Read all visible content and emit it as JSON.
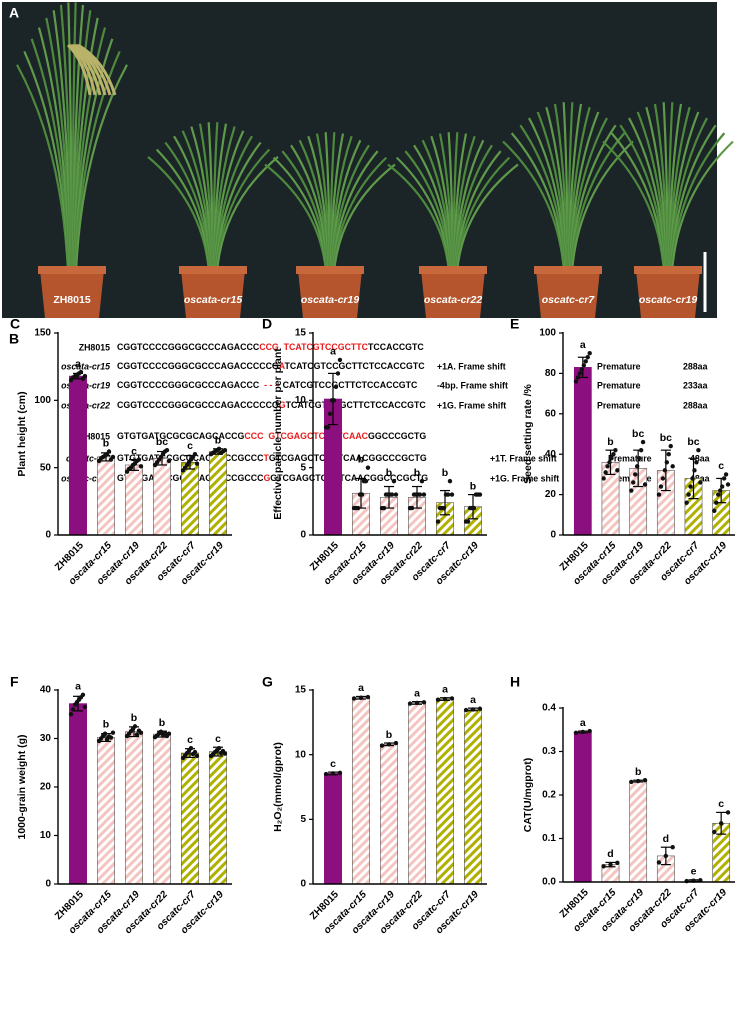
{
  "panel_a": {
    "label": "A",
    "plants": [
      "ZH8015",
      "oscata-cr15",
      "oscata-cr19",
      "oscata-cr22",
      "oscatc-cr7",
      "oscatc-cr19"
    ]
  },
  "panel_b": {
    "label": "B",
    "highlight_color": "#e8191a",
    "rows": [
      {
        "label": "ZH8015",
        "parts": [
          "CGGTCCCCGGGCGCCCAGACCC",
          "CCG  TCATCGTCCGCTTC",
          "TCCACCGTC"
        ]
      },
      {
        "label": "oscata-cr15",
        "parts": [
          "CGGTCCCCGGGCGCCCAGACCCCCG",
          "A",
          "TCATCGTCCGCTTCTCCACCGTC"
        ],
        "note": "+1A. Frame shift",
        "premature": "Premature",
        "length": "288aa"
      },
      {
        "label": "oscata-cr19",
        "parts": [
          "CGGTCCCCGGGCGCCCAGACCC",
          "  - - -  ",
          "CATCGTCCGCTTCTCCACCGTC"
        ],
        "note": "-4bp. Frame shift",
        "premature": "Premature",
        "length": "233aa"
      },
      {
        "label": "oscata-cr22",
        "parts": [
          "CGGTCCCCGGGCGCCCAGACCCCCG",
          "G",
          "TCATCGTCCGCTTCTCCACCGTC"
        ],
        "note": "+1G. Frame shift",
        "premature": "Premature",
        "length": "288aa"
      },
      {
        "label": "ZH8015",
        "parts": [
          "GTGTGATGCGCGCAGCACCG",
          "CCC  GTCGAGCTCGTTCAAC",
          "GGCCCGCTG"
        ]
      },
      {
        "label": "oscatc-cr7",
        "parts": [
          "GTGTGATGCGCGCAGCACCGCCC",
          "T",
          "GTCGAGCTCGTTCAACGGCCCGCTG"
        ],
        "note": "+1T. Frame shift",
        "premature": "Premature",
        "length": "48aa"
      },
      {
        "label": "oscatc-cr19",
        "parts": [
          "GTGTGATGCGCGCAGCACCGCCC",
          "G",
          "GTCGAGCTCGTTCAACGGCCCGCTG"
        ],
        "note": "+1G. Frame shift",
        "premature": "Premature",
        "length": "48aa"
      }
    ]
  },
  "chart_data": [
    {
      "type": "bar",
      "panel": "C",
      "ylabel": "Plant height (cm)",
      "categories": [
        "ZH8015",
        "oscata-cr15",
        "oscata-cr19",
        "oscata-cr22",
        "oscatc-cr7",
        "oscatc-cr19"
      ],
      "values": [
        118,
        58,
        52,
        57,
        54,
        62
      ],
      "errors": [
        2,
        3,
        4,
        5,
        5,
        2
      ],
      "letters": [
        "a",
        "b",
        "c",
        "bc",
        "c",
        "b"
      ],
      "points": [
        [
          115,
          117,
          118,
          119,
          120,
          121,
          116,
          118
        ],
        [
          55,
          57,
          58,
          59,
          60,
          62,
          56,
          58
        ],
        [
          47,
          49,
          50,
          52,
          53,
          55,
          56,
          51
        ],
        [
          52,
          54,
          56,
          58,
          60,
          62,
          63,
          55
        ],
        [
          48,
          50,
          52,
          54,
          56,
          58,
          60,
          53
        ],
        [
          60,
          61,
          62,
          63,
          64,
          61,
          62,
          63
        ]
      ],
      "ylim": [
        0,
        150
      ],
      "yticks": [
        0,
        50,
        100,
        150
      ],
      "colors": [
        "#8b0f7e",
        "#f4c4c0",
        "#f4c4c0",
        "#f4c4c0",
        "#b0b000",
        "#b0b000"
      ],
      "hatched": [
        false,
        true,
        true,
        true,
        true,
        true
      ]
    },
    {
      "type": "bar",
      "panel": "D",
      "ylabel": "Effective panicle number per plant",
      "categories": [
        "ZH8015",
        "oscata-cr15",
        "oscata-cr19",
        "oscata-cr22",
        "oscatc-cr7",
        "oscatc-cr19"
      ],
      "values": [
        10.1,
        3.1,
        2.8,
        2.8,
        2.4,
        2.1
      ],
      "errors": [
        1.9,
        1.1,
        0.8,
        0.8,
        0.9,
        0.9
      ],
      "letters": [
        "a",
        "b",
        "b",
        "b",
        "b",
        "b"
      ],
      "points": [
        [
          8,
          8,
          9,
          10,
          10,
          11,
          12,
          13
        ],
        [
          2,
          2,
          2,
          3,
          3,
          4,
          4,
          5
        ],
        [
          2,
          2,
          3,
          3,
          3,
          3,
          4,
          3
        ],
        [
          2,
          2,
          3,
          3,
          3,
          3,
          4,
          3
        ],
        [
          1,
          2,
          2,
          2,
          3,
          3,
          4,
          3
        ],
        [
          1,
          1,
          2,
          2,
          2,
          3,
          3,
          3
        ]
      ],
      "ylim": [
        0,
        15
      ],
      "yticks": [
        0,
        5,
        10,
        15
      ],
      "colors": [
        "#8b0f7e",
        "#f4c4c0",
        "#f4c4c0",
        "#f4c4c0",
        "#b0b000",
        "#b0b000"
      ],
      "hatched": [
        false,
        true,
        true,
        true,
        true,
        true
      ]
    },
    {
      "type": "bar",
      "panel": "E",
      "ylabel": "Seed setting rate /%",
      "categories": [
        "ZH8015",
        "oscata-cr15",
        "oscata-cr19",
        "oscata-cr22",
        "oscatc-cr7",
        "oscatc-cr19"
      ],
      "values": [
        83,
        36,
        33,
        32,
        28,
        22
      ],
      "errors": [
        5,
        6,
        9,
        10,
        10,
        6
      ],
      "letters": [
        "a",
        "b",
        "bc",
        "bc",
        "bc",
        "c"
      ],
      "points": [
        [
          76,
          78,
          80,
          82,
          84,
          86,
          88,
          90
        ],
        [
          28,
          31,
          34,
          36,
          38,
          40,
          42,
          32
        ],
        [
          22,
          26,
          30,
          34,
          38,
          42,
          46,
          25
        ],
        [
          20,
          24,
          28,
          32,
          36,
          40,
          44,
          34
        ],
        [
          16,
          20,
          24,
          28,
          32,
          36,
          42,
          26
        ],
        [
          12,
          16,
          20,
          22,
          24,
          28,
          30,
          25
        ]
      ],
      "ylim": [
        0,
        100
      ],
      "yticks": [
        0,
        20,
        40,
        60,
        80,
        100
      ],
      "colors": [
        "#8b0f7e",
        "#f4c4c0",
        "#f4c4c0",
        "#f4c4c0",
        "#b0b000",
        "#b0b000"
      ],
      "hatched": [
        false,
        true,
        true,
        true,
        true,
        true
      ]
    },
    {
      "type": "bar",
      "panel": "F",
      "ylabel": "1000-grain weight (g)",
      "categories": [
        "ZH8015",
        "oscata-cr15",
        "oscata-cr19",
        "oscata-cr22",
        "oscatc-cr7",
        "oscatc-cr19"
      ],
      "values": [
        37.2,
        30.2,
        31.4,
        30.9,
        27.0,
        27.3
      ],
      "errors": [
        1.5,
        0.8,
        1.0,
        0.6,
        0.9,
        0.9
      ],
      "letters": [
        "a",
        "b",
        "b",
        "b",
        "c",
        "c"
      ],
      "points": [
        [
          35,
          36,
          37,
          37.5,
          38,
          38.5,
          39,
          36.5
        ],
        [
          29.5,
          30,
          30.5,
          31,
          29.8,
          30.4,
          30.2,
          31.2
        ],
        [
          30.5,
          31,
          31.5,
          32,
          32.5,
          30.8,
          31.6,
          31.2
        ],
        [
          30.3,
          30.6,
          31,
          31.4,
          30.8,
          31.2,
          30.5,
          31
        ],
        [
          26,
          26.5,
          27,
          27.5,
          28,
          26.8,
          27.2,
          26.4
        ],
        [
          26.4,
          26.8,
          27.2,
          27.6,
          28,
          27,
          27.4,
          26.9
        ]
      ],
      "ylim": [
        0,
        40
      ],
      "yticks": [
        0,
        10,
        20,
        30,
        40
      ],
      "colors": [
        "#8b0f7e",
        "#f4c4c0",
        "#f4c4c0",
        "#f4c4c0",
        "#b0b000",
        "#b0b000"
      ],
      "hatched": [
        false,
        true,
        true,
        true,
        true,
        true
      ]
    },
    {
      "type": "bar",
      "panel": "G",
      "ylabel": "H₂O₂(mmol/gprot)",
      "categories": [
        "ZH8015",
        "oscata-cr15",
        "oscata-cr19",
        "oscata-cr22",
        "oscatc-cr7",
        "oscatc-cr19"
      ],
      "values": [
        8.55,
        14.4,
        10.8,
        14.0,
        14.3,
        13.5
      ],
      "errors": [
        0.1,
        0.1,
        0.1,
        0.1,
        0.1,
        0.1
      ],
      "letters": [
        "c",
        "a",
        "b",
        "a",
        "a",
        "a"
      ],
      "points": [
        [
          8.5,
          8.55,
          8.6
        ],
        [
          14.35,
          14.4,
          14.45
        ],
        [
          10.7,
          10.8,
          10.9
        ],
        [
          13.95,
          14.0,
          14.05
        ],
        [
          14.25,
          14.3,
          14.35
        ],
        [
          13.45,
          13.5,
          13.55
        ]
      ],
      "ylim": [
        0,
        15
      ],
      "yticks": [
        0,
        5,
        10,
        15
      ],
      "colors": [
        "#8b0f7e",
        "#f4c4c0",
        "#f4c4c0",
        "#f4c4c0",
        "#b0b000",
        "#b0b000"
      ],
      "hatched": [
        false,
        true,
        true,
        true,
        true,
        true
      ]
    },
    {
      "type": "bar",
      "panel": "H",
      "ylabel": "CAT(U/mgprot)",
      "categories": [
        "ZH8015",
        "oscata-cr15",
        "oscata-cr19",
        "oscata-cr22",
        "oscatc-cr7",
        "oscatc-cr19"
      ],
      "values": [
        0.345,
        0.04,
        0.232,
        0.06,
        0.003,
        0.135
      ],
      "errors": [
        0.002,
        0.005,
        0.002,
        0.02,
        0.002,
        0.025
      ],
      "letters": [
        "a",
        "d",
        "b",
        "d",
        "e",
        "c"
      ],
      "points": [
        [
          0.343,
          0.345,
          0.347
        ],
        [
          0.036,
          0.04,
          0.044
        ],
        [
          0.23,
          0.232,
          0.234
        ],
        [
          0.045,
          0.06,
          0.08
        ],
        [
          0.002,
          0.003,
          0.004
        ],
        [
          0.115,
          0.135,
          0.16
        ]
      ],
      "ylim": [
        0,
        0.4
      ],
      "yticks": [
        {
          "value": 0,
          "label": "0.0"
        },
        0.1,
        0.2,
        0.3,
        0.4
      ],
      "colors": [
        "#8b0f7e",
        "#f4c4c0",
        "#f4c4c0",
        "#f4c4c0",
        "#b0b000",
        "#b0b000"
      ],
      "hatched": [
        false,
        true,
        true,
        true,
        true,
        true
      ]
    }
  ]
}
